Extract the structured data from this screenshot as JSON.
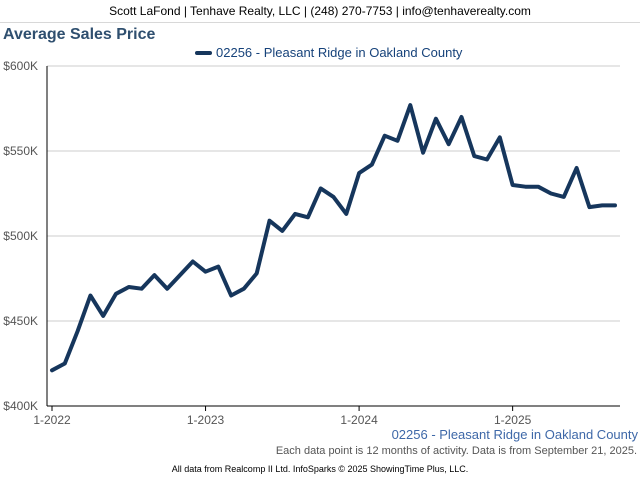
{
  "header": {
    "text": "Scott LaFond | Tenhave Realty, LLC | (248) 270-7753 | info@tenhaverealty.com"
  },
  "footer": {
    "series_label": "02256 - Pleasant Ridge in Oakland County",
    "note": "Each data point is 12 months of activity. Data is from September 21, 2025.",
    "credits": "All data from Realcomp II Ltd. InfoSparks © 2025 ShowingTime Plus, LLC."
  },
  "colors": {
    "series_line": "#16365c",
    "title": "#2f4f6f",
    "series_label": "#3e68a8",
    "grid": "#cccccc",
    "axis": "#000000"
  },
  "chart_data": {
    "type": "line",
    "title": "Average Sales Price",
    "legend_placement": "top-center",
    "grid": true,
    "x_tick_labels": [
      "1-2022",
      "1-2023",
      "1-2024",
      "1-2025"
    ],
    "y_tick_labels": [
      "$400K",
      "$450K",
      "$500K",
      "$550K",
      "$600K"
    ],
    "ylim": [
      400000,
      600000
    ],
    "xlim": [
      "2022-01",
      "2025-09"
    ],
    "series": [
      {
        "name": "02256 - Pleasant Ridge in Oakland County",
        "x": [
          "2022-01",
          "2022-02",
          "2022-03",
          "2022-04",
          "2022-05",
          "2022-06",
          "2022-07",
          "2022-08",
          "2022-09",
          "2022-10",
          "2022-11",
          "2022-12",
          "2023-01",
          "2023-02",
          "2023-03",
          "2023-04",
          "2023-05",
          "2023-06",
          "2023-07",
          "2023-08",
          "2023-09",
          "2023-10",
          "2023-11",
          "2023-12",
          "2024-01",
          "2024-02",
          "2024-03",
          "2024-04",
          "2024-05",
          "2024-06",
          "2024-07",
          "2024-08",
          "2024-09",
          "2024-10",
          "2024-11",
          "2024-12",
          "2025-01",
          "2025-02",
          "2025-03",
          "2025-04",
          "2025-05",
          "2025-06",
          "2025-07",
          "2025-08",
          "2025-09"
        ],
        "values": [
          421000,
          425000,
          444000,
          465000,
          453000,
          466000,
          470000,
          469000,
          477000,
          469000,
          477000,
          485000,
          479000,
          482000,
          465000,
          469000,
          478000,
          509000,
          503000,
          513000,
          511000,
          528000,
          523000,
          513000,
          537000,
          542000,
          559000,
          556000,
          577000,
          549000,
          569000,
          554000,
          570000,
          547000,
          545000,
          558000,
          530000,
          529000,
          529000,
          525000,
          523000,
          540000,
          517000,
          518000,
          518000
        ]
      }
    ]
  }
}
